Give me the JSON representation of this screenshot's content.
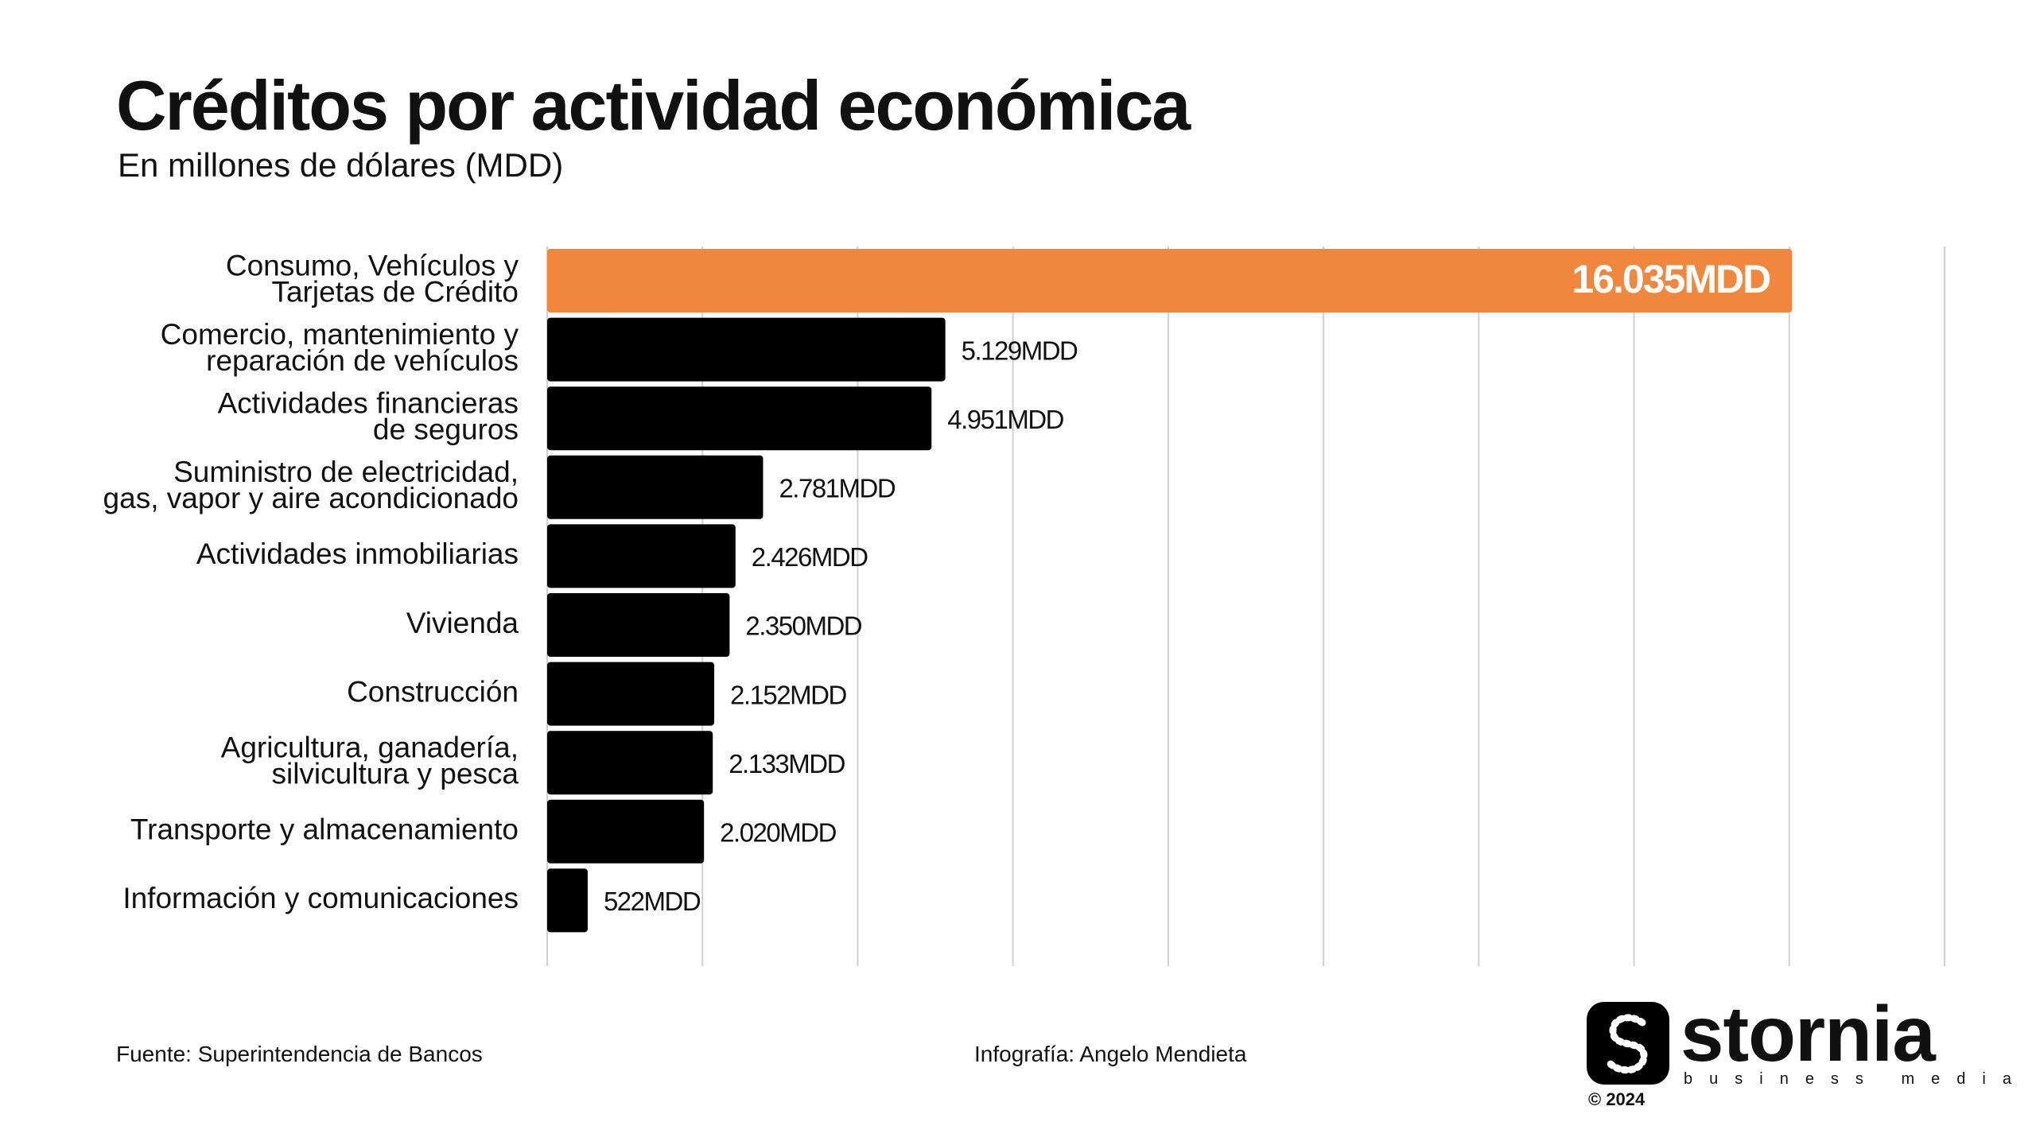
{
  "header": {
    "title": "Créditos por actividad económica",
    "subtitle": "En millones de dólares (MDD)"
  },
  "chart_data": {
    "type": "bar",
    "orientation": "horizontal",
    "categories": [
      [
        "Consumo, Vehículos y",
        "Tarjetas de Crédito"
      ],
      [
        "Comercio, mantenimiento y",
        "reparación de vehículos"
      ],
      [
        "Actividades financieras",
        "de seguros"
      ],
      [
        "Suministro de electricidad,",
        "gas, vapor y aire acondicionado"
      ],
      [
        "Actividades inmobiliarias"
      ],
      [
        "Vivienda"
      ],
      [
        "Construcción"
      ],
      [
        "Agricultura, ganadería,",
        "silvicultura y pesca"
      ],
      [
        "Transporte y almacenamiento"
      ],
      [
        "Información y comunicaciones"
      ]
    ],
    "values": [
      16035,
      5129,
      4951,
      2781,
      2426,
      2350,
      2152,
      2133,
      2020,
      522
    ],
    "value_labels": [
      "16.035MDD",
      "5.129MDD",
      "4.951MDD",
      "2.781MDD",
      "2.426MDD",
      "2.350MDD",
      "2.152MDD",
      "2.133MDD",
      "2.020MDD",
      "522MDD"
    ],
    "xlim": [
      0,
      18000
    ],
    "x_gridlines": [
      0,
      2000,
      4000,
      6000,
      8000,
      10000,
      12000,
      14000,
      16000,
      18000
    ],
    "grid": true,
    "colors": {
      "highlight": "#F0873C",
      "default": "#000000",
      "grid": "#d0d0d0"
    }
  },
  "footer": {
    "source": "Fuente: Superintendencia de Bancos",
    "credit": "Infografía: Angelo Mendieta"
  },
  "logo": {
    "wordmark": "stornia",
    "tagline": "business media",
    "copyright": "© 2024"
  }
}
